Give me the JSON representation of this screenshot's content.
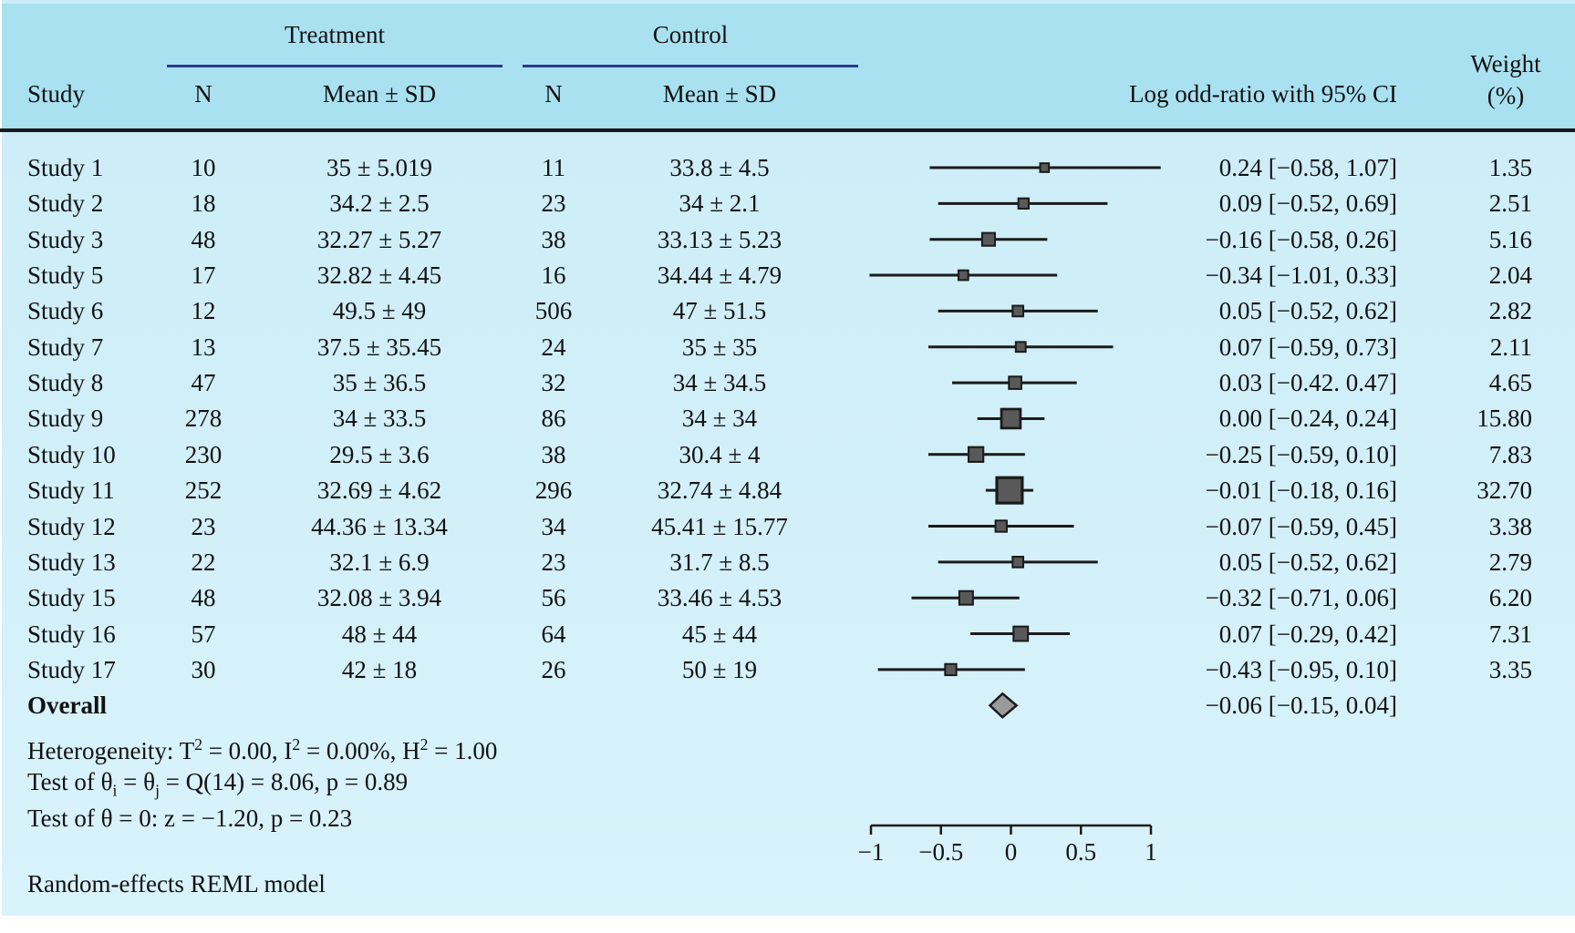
{
  "figure": {
    "header": {
      "study": "Study",
      "treatment": "Treatment",
      "control": "Control",
      "n": "N",
      "mean_sd": "Mean ± SD",
      "effect": "Log odd-ratio with 95% CI",
      "weight_line1": "Weight",
      "weight_line2": "(%)"
    }
  },
  "chart_data": {
    "type": "forest",
    "effect_measure": "Log odd-ratio with 95% CI",
    "model_note": "Random-effects REML model",
    "axis": {
      "range": [
        -1,
        1
      ],
      "tick_values": [
        -1,
        -0.5,
        0,
        0.5,
        1
      ],
      "tick_labels": [
        "−1",
        "−0.5",
        "0",
        "0.5",
        "1"
      ]
    },
    "columns": [
      "Study",
      "Treatment N",
      "Treatment Mean ± SD",
      "Control N",
      "Control Mean ± SD",
      "Log odd-ratio with 95% CI",
      "Weight (%)"
    ],
    "studies": [
      {
        "study": "Study 1",
        "treatment_n": "10",
        "treatment_mean_sd": "35 ± 5.019",
        "control_n": "11",
        "control_mean_sd": "33.8 ± 4.5",
        "est": 0.24,
        "lo": -0.58,
        "hi": 1.07,
        "ci_text": "0.24 [−0.58, 1.07]",
        "weight": 1.35,
        "weight_text": "1.35"
      },
      {
        "study": "Study 2",
        "treatment_n": "18",
        "treatment_mean_sd": "34.2 ± 2.5",
        "control_n": "23",
        "control_mean_sd": "34 ± 2.1",
        "est": 0.09,
        "lo": -0.52,
        "hi": 0.69,
        "ci_text": "0.09 [−0.52, 0.69]",
        "weight": 2.51,
        "weight_text": "2.51"
      },
      {
        "study": "Study 3",
        "treatment_n": "48",
        "treatment_mean_sd": "32.27 ± 5.27",
        "control_n": "38",
        "control_mean_sd": "33.13 ± 5.23",
        "est": -0.16,
        "lo": -0.58,
        "hi": 0.26,
        "ci_text": "−0.16 [−0.58, 0.26]",
        "weight": 5.16,
        "weight_text": "5.16"
      },
      {
        "study": "Study 5",
        "treatment_n": "17",
        "treatment_mean_sd": "32.82 ± 4.45",
        "control_n": "16",
        "control_mean_sd": "34.44 ± 4.79",
        "est": -0.34,
        "lo": -1.01,
        "hi": 0.33,
        "ci_text": "−0.34 [−1.01, 0.33]",
        "weight": 2.04,
        "weight_text": "2.04"
      },
      {
        "study": "Study 6",
        "treatment_n": "12",
        "treatment_mean_sd": "49.5 ± 49",
        "control_n": "506",
        "control_mean_sd": "47 ± 51.5",
        "est": 0.05,
        "lo": -0.52,
        "hi": 0.62,
        "ci_text": "0.05 [−0.52, 0.62]",
        "weight": 2.82,
        "weight_text": "2.82"
      },
      {
        "study": "Study 7",
        "treatment_n": "13",
        "treatment_mean_sd": "37.5 ± 35.45",
        "control_n": "24",
        "control_mean_sd": "35 ± 35",
        "est": 0.07,
        "lo": -0.59,
        "hi": 0.73,
        "ci_text": "0.07 [−0.59, 0.73]",
        "weight": 2.11,
        "weight_text": "2.11"
      },
      {
        "study": "Study 8",
        "treatment_n": "47",
        "treatment_mean_sd": "35 ± 36.5",
        "control_n": "32",
        "control_mean_sd": "34 ± 34.5",
        "est": 0.03,
        "lo": -0.42,
        "hi": 0.47,
        "ci_text": "0.03 [−0.42. 0.47]",
        "weight": 4.65,
        "weight_text": "4.65"
      },
      {
        "study": "Study 9",
        "treatment_n": "278",
        "treatment_mean_sd": "34 ± 33.5",
        "control_n": "86",
        "control_mean_sd": "34 ± 34",
        "est": 0.0,
        "lo": -0.24,
        "hi": 0.24,
        "ci_text": "0.00 [−0.24, 0.24]",
        "weight": 15.8,
        "weight_text": "15.80"
      },
      {
        "study": "Study 10",
        "treatment_n": "230",
        "treatment_mean_sd": "29.5 ± 3.6",
        "control_n": "38",
        "control_mean_sd": "30.4 ± 4",
        "est": -0.25,
        "lo": -0.59,
        "hi": 0.1,
        "ci_text": "−0.25 [−0.59, 0.10]",
        "weight": 7.83,
        "weight_text": "7.83"
      },
      {
        "study": "Study 11",
        "treatment_n": "252",
        "treatment_mean_sd": "32.69 ± 4.62",
        "control_n": "296",
        "control_mean_sd": "32.74 ± 4.84",
        "est": -0.01,
        "lo": -0.18,
        "hi": 0.16,
        "ci_text": "−0.01 [−0.18, 0.16]",
        "weight": 32.7,
        "weight_text": "32.70"
      },
      {
        "study": "Study 12",
        "treatment_n": "23",
        "treatment_mean_sd": "44.36 ± 13.34",
        "control_n": "34",
        "control_mean_sd": "45.41 ± 15.77",
        "est": -0.07,
        "lo": -0.59,
        "hi": 0.45,
        "ci_text": "−0.07 [−0.59, 0.45]",
        "weight": 3.38,
        "weight_text": "3.38"
      },
      {
        "study": "Study 13",
        "treatment_n": "22",
        "treatment_mean_sd": "32.1 ± 6.9",
        "control_n": "23",
        "control_mean_sd": "31.7 ± 8.5",
        "est": 0.05,
        "lo": -0.52,
        "hi": 0.62,
        "ci_text": "0.05 [−0.52, 0.62]",
        "weight": 2.79,
        "weight_text": "2.79"
      },
      {
        "study": "Study 15",
        "treatment_n": "48",
        "treatment_mean_sd": "32.08 ± 3.94",
        "control_n": "56",
        "control_mean_sd": "33.46 ± 4.53",
        "est": -0.32,
        "lo": -0.71,
        "hi": 0.06,
        "ci_text": "−0.32 [−0.71, 0.06]",
        "weight": 6.2,
        "weight_text": "6.20"
      },
      {
        "study": "Study 16",
        "treatment_n": "57",
        "treatment_mean_sd": "48 ± 44",
        "control_n": "64",
        "control_mean_sd": "45 ± 44",
        "est": 0.07,
        "lo": -0.29,
        "hi": 0.42,
        "ci_text": "0.07 [−0.29, 0.42]",
        "weight": 7.31,
        "weight_text": "7.31"
      },
      {
        "study": "Study 17",
        "treatment_n": "30",
        "treatment_mean_sd": "42 ± 18",
        "control_n": "26",
        "control_mean_sd": "50 ± 19",
        "est": -0.43,
        "lo": -0.95,
        "hi": 0.1,
        "ci_text": "−0.43 [−0.95, 0.10]",
        "weight": 3.35,
        "weight_text": "3.35"
      }
    ],
    "overall": {
      "label": "Overall",
      "est": -0.06,
      "lo": -0.15,
      "hi": 0.04,
      "ci_text": "−0.06 [−0.15, 0.04]"
    },
    "notes": [
      {
        "segments": [
          {
            "t": "Heterogeneity: T"
          },
          {
            "t": "2",
            "sup": true
          },
          {
            "t": " = 0.00, I"
          },
          {
            "t": "2",
            "sup": true
          },
          {
            "t": " = 0.00%, H"
          },
          {
            "t": "2",
            "sup": true
          },
          {
            "t": " = 1.00"
          }
        ]
      },
      {
        "segments": [
          {
            "t": "Test of θ"
          },
          {
            "t": "i",
            "sub": true
          },
          {
            "t": " = θ"
          },
          {
            "t": "j",
            "sub": true
          },
          {
            "t": " = Q(14) = 8.06, p = 0.89"
          }
        ]
      },
      {
        "segments": [
          {
            "t": "Test of θ = 0: z = −1.20, p = 0.23"
          }
        ]
      }
    ],
    "colors": {
      "header_bg": "#a9e1f1",
      "body_bg_top": "#cbecf7",
      "body_bg_bottom": "#d9f3fb",
      "rule_navy": "#2b3a8f",
      "line_black": "#1a1a1a",
      "marker_fill": "#595959",
      "diamond_fill": "#9a9a9a",
      "text": "#111111"
    }
  }
}
